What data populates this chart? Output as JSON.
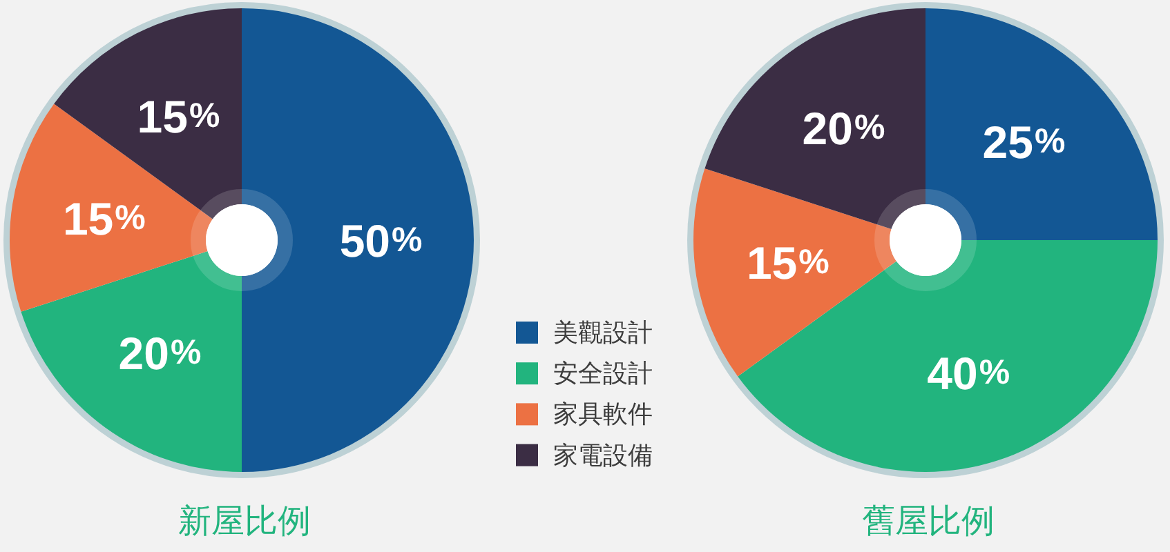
{
  "chart_data": {
    "type": "donut",
    "categories": [
      "美觀設計",
      "安全設計",
      "家具軟件",
      "家電設備"
    ],
    "colors": [
      "#135794",
      "#22b47e",
      "#ec7143",
      "#3b2d44"
    ],
    "series": [
      {
        "name": "新屋比例",
        "values": [
          50,
          20,
          15,
          15
        ],
        "value_labels": [
          "50%",
          "20%",
          "15%",
          "15%"
        ]
      },
      {
        "name": "舊屋比例",
        "values": [
          25,
          40,
          15,
          20
        ],
        "value_labels": [
          "25%",
          "40%",
          "15%",
          "20%"
        ]
      }
    ],
    "legend": "bottom"
  }
}
